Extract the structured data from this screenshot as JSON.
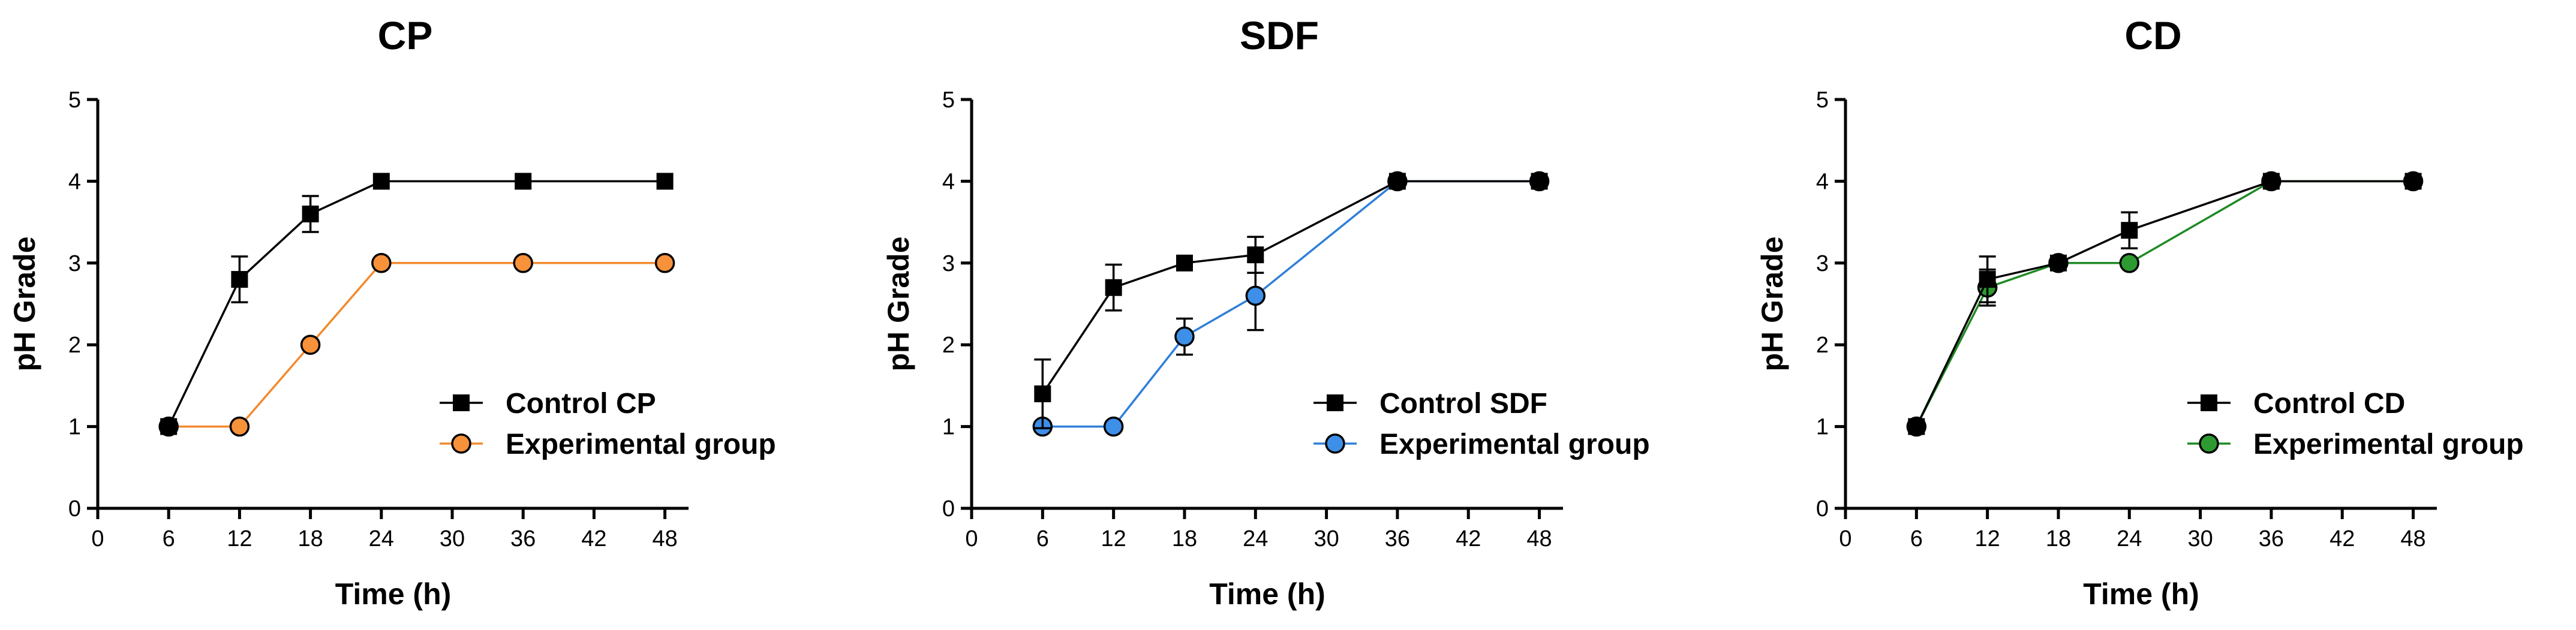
{
  "chart_data": [
    {
      "type": "line",
      "title": "CP",
      "xlabel": "Time (h)",
      "ylabel": "pH Grade",
      "xlim": [
        0,
        50
      ],
      "ylim": [
        0,
        5
      ],
      "xticks": [
        "0",
        "6",
        "12",
        "18",
        "24",
        "30",
        "36",
        "42",
        "48"
      ],
      "yticks": [
        "0",
        "1",
        "2",
        "3",
        "4",
        "5"
      ],
      "legend_position": "lower-right",
      "series": [
        {
          "name": "Control CP",
          "marker": "square",
          "color": "#000000",
          "fill": "#000000",
          "x": [
            6,
            12,
            18,
            24,
            36,
            48
          ],
          "y": [
            1,
            2.8,
            3.6,
            4,
            4,
            4
          ],
          "error": [
            0,
            0.28,
            0.22,
            0,
            0,
            0
          ]
        },
        {
          "name": "Experimental group",
          "marker": "circle",
          "color": "#F28A2E",
          "fill": "#F7913A",
          "x": [
            6,
            12,
            18,
            24,
            36,
            48
          ],
          "y": [
            1,
            1,
            2,
            3,
            3,
            3
          ],
          "error": [
            0,
            0,
            0,
            0,
            0,
            0
          ]
        }
      ]
    },
    {
      "type": "line",
      "title": "SDF",
      "xlabel": "Time (h)",
      "ylabel": "pH Grade",
      "xlim": [
        0,
        50
      ],
      "ylim": [
        0,
        5
      ],
      "xticks": [
        "0",
        "6",
        "12",
        "18",
        "24",
        "30",
        "36",
        "42",
        "48"
      ],
      "yticks": [
        "0",
        "1",
        "2",
        "3",
        "4",
        "5"
      ],
      "legend_position": "lower-right",
      "series": [
        {
          "name": "Control SDF",
          "marker": "square",
          "color": "#000000",
          "fill": "#000000",
          "x": [
            6,
            12,
            18,
            24,
            36,
            48
          ],
          "y": [
            1.4,
            2.7,
            3,
            3.1,
            4,
            4
          ],
          "error": [
            0.42,
            0.28,
            0,
            0.22,
            0,
            0
          ]
        },
        {
          "name": "Experimental group",
          "marker": "circle",
          "color": "#2F7FD8",
          "fill": "#3D8FE8",
          "x": [
            6,
            12,
            18,
            24,
            36,
            48
          ],
          "y": [
            1,
            1,
            2.1,
            2.6,
            4,
            4
          ],
          "error": [
            0,
            0,
            0.22,
            0.42,
            0,
            0
          ]
        }
      ]
    },
    {
      "type": "line",
      "title": "CD",
      "xlabel": "Time (h)",
      "ylabel": "pH Grade",
      "xlim": [
        0,
        50
      ],
      "ylim": [
        0,
        5
      ],
      "xticks": [
        "0",
        "6",
        "12",
        "18",
        "24",
        "30",
        "36",
        "42",
        "48"
      ],
      "yticks": [
        "0",
        "1",
        "2",
        "3",
        "4",
        "5"
      ],
      "legend_position": "lower-right",
      "series": [
        {
          "name": "Control CD",
          "marker": "square",
          "color": "#000000",
          "fill": "#000000",
          "x": [
            6,
            12,
            18,
            24,
            36,
            48
          ],
          "y": [
            1,
            2.8,
            3,
            3.4,
            4,
            4
          ],
          "error": [
            0,
            0.28,
            0,
            0.22,
            0,
            0
          ]
        },
        {
          "name": "Experimental group",
          "marker": "circle",
          "color": "#1E8A24",
          "fill": "#2E9A32",
          "x": [
            6,
            12,
            18,
            24,
            36,
            48
          ],
          "y": [
            1,
            2.7,
            3,
            3,
            4,
            4
          ],
          "error": [
            0,
            0.22,
            0,
            0,
            0,
            0
          ]
        }
      ]
    }
  ]
}
